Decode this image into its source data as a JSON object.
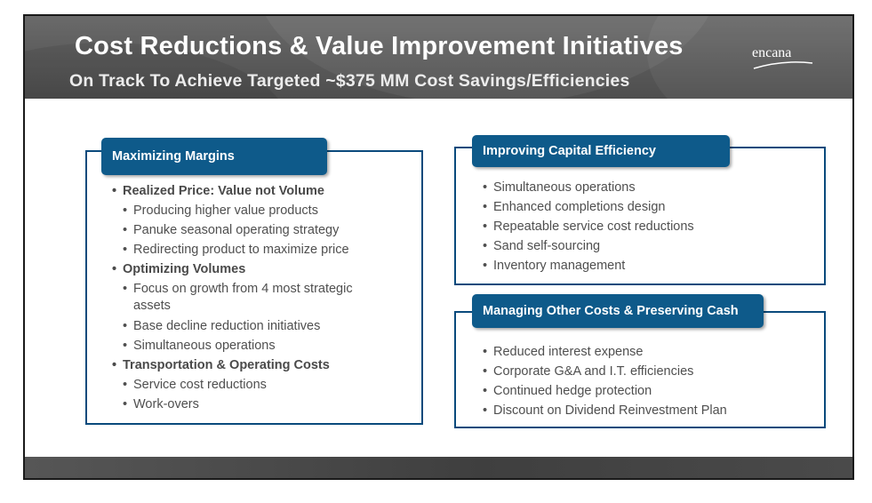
{
  "slide": {
    "title": "Cost Reductions & Value Improvement Initiatives",
    "subtitle": "On Track To Achieve Targeted ~$375 MM Cost Savings/Efficiencies",
    "logo": "encana"
  },
  "bullet_char": "•",
  "panels": {
    "maximizing_margins": {
      "heading": "Maximizing Margins",
      "items": [
        {
          "text": "Realized Price: Value not Volume"
        },
        {
          "text": "Producing higher value products"
        },
        {
          "text": "Panuke seasonal operating strategy"
        },
        {
          "text": "Redirecting product to maximize price"
        },
        {
          "text": "Optimizing Volumes"
        },
        {
          "text": "Focus on growth from 4 most strategic",
          "cont": "assets"
        },
        {
          "text": "Base decline reduction initiatives"
        },
        {
          "text": "Simultaneous operations"
        },
        {
          "text": "Transportation & Operating Costs"
        },
        {
          "text": "Service cost reductions"
        },
        {
          "text": "Work-overs"
        }
      ]
    },
    "capital_efficiency": {
      "heading": "Improving Capital Efficiency",
      "items": [
        "Simultaneous operations",
        "Enhanced completions design",
        "Repeatable service cost reductions",
        "Sand self-sourcing",
        "Inventory management"
      ]
    },
    "other_costs": {
      "heading": "Managing Other Costs & Preserving Cash",
      "items": [
        "Reduced interest expense",
        "Corporate G&A and I.T. efficiencies",
        "Continued hedge protection",
        "Discount on Dividend Reinvestment Plan"
      ]
    }
  }
}
